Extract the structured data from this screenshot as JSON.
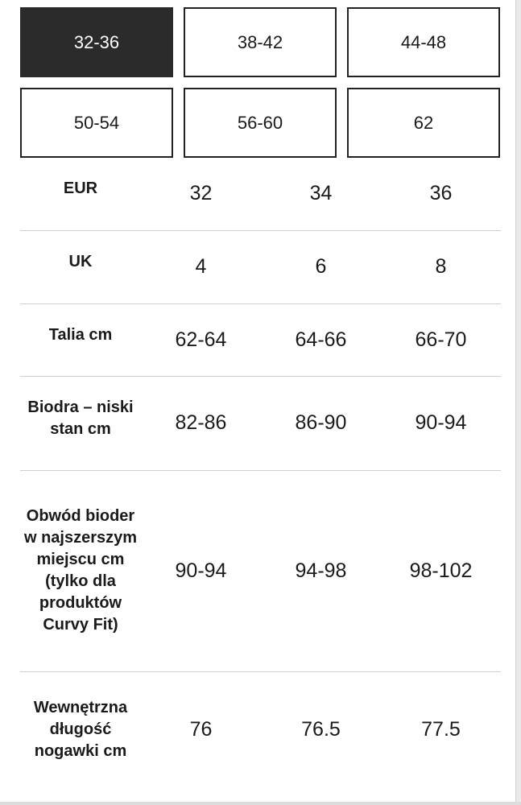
{
  "size_options": [
    {
      "label": "32-36",
      "selected": true
    },
    {
      "label": "38-42",
      "selected": false
    },
    {
      "label": "44-48",
      "selected": false
    },
    {
      "label": "50-54",
      "selected": false
    },
    {
      "label": "56-60",
      "selected": false
    },
    {
      "label": "62",
      "selected": false
    }
  ],
  "colors": {
    "selected_bg": "#2b2b2b",
    "selected_text": "#ffffff",
    "border": "#222222",
    "divider": "#cfcfcf"
  },
  "table": {
    "rows": [
      {
        "label": "EUR",
        "values": [
          "32",
          "34",
          "36"
        ]
      },
      {
        "label": "UK",
        "values": [
          "4",
          "6",
          "8"
        ]
      },
      {
        "label": "Talia cm",
        "values": [
          "62-64",
          "64-66",
          "66-70"
        ]
      },
      {
        "label": "Biodra – niski stan cm",
        "values": [
          "82-86",
          "86-90",
          "90-94"
        ]
      },
      {
        "label": "Obwód bioder w najszerszym miejscu cm (tylko dla produktów Curvy Fit)",
        "values": [
          "90-94",
          "94-98",
          "98-102"
        ]
      },
      {
        "label": "Wewnętrzna długość nogawki cm",
        "values": [
          "76",
          "76.5",
          "77.5"
        ]
      }
    ]
  }
}
